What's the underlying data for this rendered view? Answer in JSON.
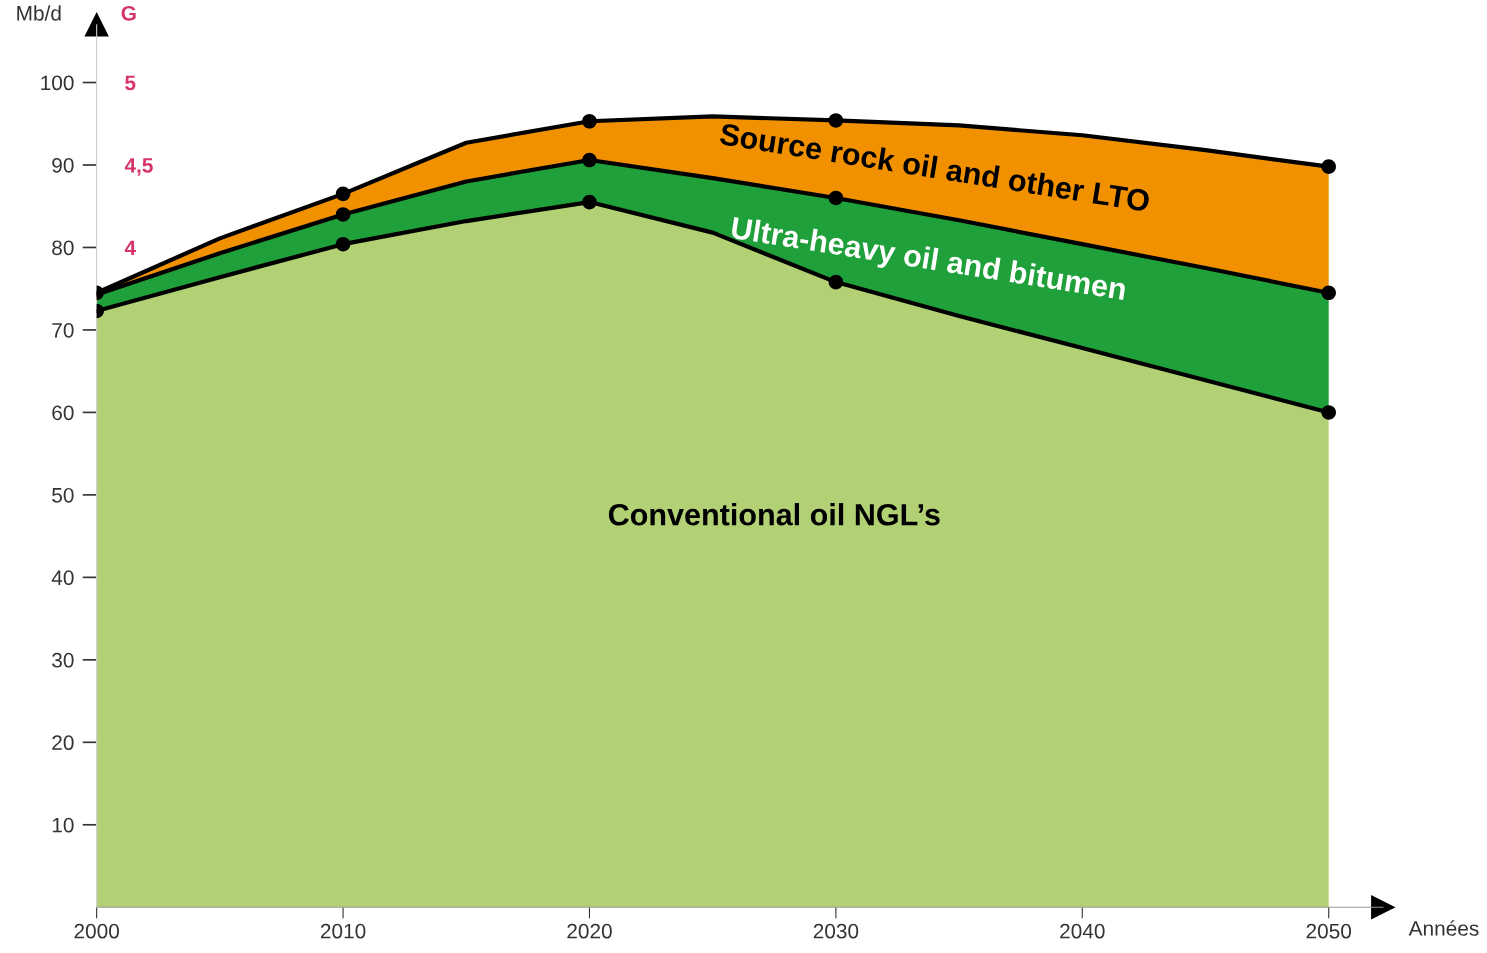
{
  "chart_data": {
    "type": "area",
    "stacked": true,
    "xlabel": "Années",
    "ylabel": "Mb/d",
    "y2label": "G",
    "x": [
      2000,
      2005,
      2010,
      2015,
      2020,
      2025,
      2030,
      2035,
      2040,
      2045,
      2050
    ],
    "series": [
      {
        "name": "Conventional oil NGL’s",
        "color": "#b2d175",
        "values": [
          72.3,
          76.4,
          80.4,
          83.2,
          85.5,
          81.8,
          75.8,
          71.7,
          67.8,
          63.9,
          60.0
        ]
      },
      {
        "name": "Ultra-heavy oil and bitumen",
        "color": "#20a03a",
        "values": [
          2.0,
          2.9,
          3.6,
          4.8,
          5.1,
          6.6,
          10.2,
          11.6,
          12.6,
          13.6,
          14.5
        ]
      },
      {
        "name": "Source rock oil and other LTO",
        "color": "#f29100",
        "values": [
          0.2,
          1.8,
          2.5,
          4.7,
          4.7,
          7.5,
          9.4,
          11.5,
          13.2,
          14.3,
          15.3
        ]
      },
      {
        "type": "scatter",
        "marker": "circle",
        "color": "#000000",
        "x": [
          2000,
          2010,
          2020,
          2030,
          2050,
          2010,
          2020,
          2030,
          2050,
          2000,
          2010,
          2020,
          2030,
          2050
        ],
        "values": [
          72.3,
          80.4,
          85.5,
          75.8,
          60.0,
          84.0,
          90.6,
          86.0,
          74.5,
          74.5,
          86.5,
          95.3,
          95.4,
          89.8
        ]
      }
    ],
    "xlim": [
      2000,
      2052.2
    ],
    "xticks": [
      2000,
      2010,
      2020,
      2030,
      2040,
      2050
    ],
    "ylim": [
      0,
      107
    ],
    "yticks": [
      10,
      20,
      30,
      40,
      50,
      60,
      70,
      80,
      90,
      100
    ],
    "y2lim": [
      0,
      5.35
    ],
    "y2ticks": [
      {
        "value": 4,
        "label": "4"
      },
      {
        "value": 4.5,
        "label": "4,5"
      },
      {
        "value": 5,
        "label": "5"
      }
    ],
    "grid": false,
    "legend": false
  }
}
